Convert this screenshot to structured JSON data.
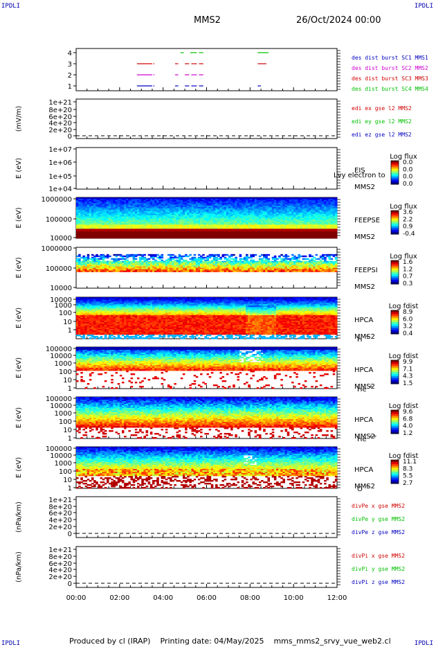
{
  "header": {
    "corner": "IPDLI",
    "title": "MMS2",
    "date": "26/Oct/2024 00:00"
  },
  "footer": {
    "produced": "Produced by cl (IRAP)",
    "printing": "Printing date: 04/May/2025",
    "file": "mms_mms2_srvy_vue_web2.cl"
  },
  "colors": {
    "red": "#d00000",
    "magenta": "#d000d0",
    "blue": "#0000c0",
    "green": "#00c000"
  },
  "chart_data": [
    {
      "type": "line",
      "name": "burst-flags",
      "ylabel": "",
      "ylim": [
        0.5,
        4.5
      ],
      "yticks": [
        "4",
        "3",
        "2",
        "1"
      ],
      "legend": [
        "des dist burst SC1 MMS1",
        "des dist burst SC2 MMS2",
        "des dist burst SC3 MMS3",
        "des dist burst SC4 MMS4"
      ],
      "series": [
        {
          "name": "SC4",
          "level": 4,
          "segments": [
            [
              4.8,
              4.95
            ],
            [
              5.25,
              5.55
            ],
            [
              5.65,
              5.85
            ],
            [
              8.35,
              8.85
            ]
          ]
        },
        {
          "name": "SC3",
          "level": 3,
          "segments": [
            [
              2.8,
              3.5
            ],
            [
              3.55,
              3.6
            ],
            [
              4.55,
              4.7
            ],
            [
              5.0,
              5.2
            ],
            [
              5.3,
              5.55
            ],
            [
              5.65,
              5.85
            ],
            [
              8.35,
              8.75
            ]
          ]
        },
        {
          "name": "SC2",
          "level": 2,
          "segments": [
            [
              2.8,
              3.5
            ],
            [
              3.55,
              3.6
            ],
            [
              4.55,
              4.7
            ],
            [
              5.0,
              5.2
            ],
            [
              5.3,
              5.55
            ],
            [
              5.65,
              5.85
            ]
          ]
        },
        {
          "name": "SC1",
          "level": 1,
          "segments": [
            [
              2.8,
              3.5
            ],
            [
              3.55,
              3.6
            ],
            [
              4.55,
              4.7
            ],
            [
              5.0,
              5.2
            ],
            [
              5.3,
              5.55
            ],
            [
              5.65,
              5.85
            ],
            [
              8.35,
              8.5
            ]
          ]
        }
      ]
    },
    {
      "type": "line",
      "name": "edi-e",
      "ylabel": "(mV/m)",
      "yticks": [
        "1e+21",
        "8e+20",
        "6e+20",
        "4e+20",
        "2e+20",
        "0"
      ],
      "legend": [
        "edi ex gse l2 MMS2",
        "edi ey gse l2 MMS2",
        "edi ez gse l2 MMS2"
      ]
    },
    {
      "type": "heatmap",
      "name": "eis",
      "ylabel": "E (eV)",
      "yticks": [
        "1e+07",
        "1e+06",
        "1e+05",
        "1e+04"
      ],
      "labels": [
        "EIS",
        "MMS2"
      ],
      "overlay": "Lvy electron to",
      "colorbar": {
        "title": "Log flux",
        "ticks": [
          "0.0",
          "0.0",
          "0.0",
          "0.0"
        ]
      }
    },
    {
      "type": "heatmap",
      "name": "feeps-e",
      "ylabel": "E (eV)",
      "yticks": [
        "1000000",
        "100000",
        "10000"
      ],
      "labels": [
        "FEEPSE",
        "MMS2"
      ],
      "colorbar": {
        "title": "Log flux",
        "ticks": [
          "3.6",
          "2.2",
          "0.9",
          "-0.4"
        ]
      }
    },
    {
      "type": "heatmap",
      "name": "feeps-i",
      "ylabel": "E (eV)",
      "yticks": [
        "1000000",
        "100000",
        "10000"
      ],
      "labels": [
        "FEEPSI",
        "MMS2"
      ],
      "colorbar": {
        "title": "Log flux",
        "ticks": [
          "1.6",
          "1.2",
          "0.7",
          "0.3"
        ]
      }
    },
    {
      "type": "heatmap",
      "name": "hpca-h",
      "ylabel": "E (eV)",
      "yticks": [
        "10000",
        "1000",
        "100",
        "10",
        "1"
      ],
      "labels": [
        "HPCA",
        "MMS2"
      ],
      "species": "H",
      "charge": "+",
      "colorbar": {
        "title": "Log fdist",
        "ticks": [
          "8.9",
          "6.0",
          "3.2",
          "0.4"
        ]
      }
    },
    {
      "type": "heatmap",
      "name": "hpca-he",
      "ylabel": "E (eV)",
      "yticks": [
        "100000",
        "10000",
        "1000",
        "100",
        "10",
        "1"
      ],
      "labels": [
        "HPCA",
        "MMS2"
      ],
      "species": "He",
      "charge": "+",
      "colorbar": {
        "title": "Log fdist",
        "ticks": [
          "9.9",
          "7.1",
          "4.3",
          "1.5"
        ]
      }
    },
    {
      "type": "heatmap",
      "name": "hpca-hepp",
      "ylabel": "E (eV)",
      "yticks": [
        "100000",
        "10000",
        "1000",
        "100",
        "10",
        "1"
      ],
      "labels": [
        "HPCA",
        "MMS2"
      ],
      "species": "He",
      "charge": "++",
      "colorbar": {
        "title": "Log fdist",
        "ticks": [
          "9.6",
          "6.8",
          "4.0",
          "1.2"
        ]
      }
    },
    {
      "type": "heatmap",
      "name": "hpca-o",
      "ylabel": "E (eV)",
      "yticks": [
        "100000",
        "10000",
        "1000",
        "100",
        "10",
        "1"
      ],
      "labels": [
        "HPCA",
        "MMS2"
      ],
      "species": "O",
      "charge": "+",
      "colorbar": {
        "title": "Log fdist",
        "ticks": [
          "11.1",
          "8.3",
          "5.5",
          "2.7"
        ]
      }
    },
    {
      "type": "line",
      "name": "divpe",
      "ylabel": "(nPa/km)",
      "yticks": [
        "1e+21",
        "8e+20",
        "6e+20",
        "4e+20",
        "2e+20",
        "0"
      ],
      "legend": [
        "divPe x gse MMS2",
        "divPe y gse MMS2",
        "divPe z gse MMS2"
      ]
    },
    {
      "type": "line",
      "name": "divpi",
      "ylabel": "(nPa/km)",
      "yticks": [
        "1e+21",
        "8e+20",
        "6e+20",
        "4e+20",
        "2e+20",
        "0"
      ],
      "legend": [
        "divPi x gse MMS2",
        "divPi y gse MMS2",
        "divPi z gse MMS2"
      ]
    }
  ],
  "xaxis": {
    "ticks": [
      "00:00",
      "02:00",
      "04:00",
      "06:00",
      "08:00",
      "10:00",
      "12:00"
    ],
    "range_hours": [
      0,
      12
    ]
  }
}
